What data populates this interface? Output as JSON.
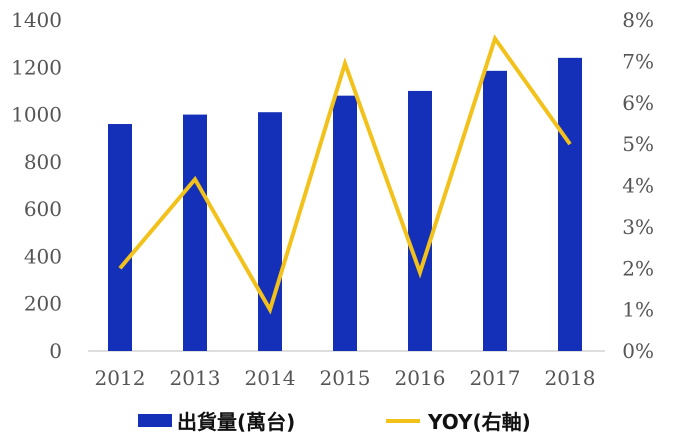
{
  "chart_data": {
    "type": "bar",
    "categories": [
      "2012",
      "2013",
      "2014",
      "2015",
      "2016",
      "2017",
      "2018"
    ],
    "series": [
      {
        "name": "出貨量(萬台)",
        "type": "bar",
        "axis": "left",
        "color": "#1530b8",
        "values": [
          960,
          1000,
          1010,
          1080,
          1100,
          1185,
          1240
        ]
      },
      {
        "name": "YOY(右軸)",
        "type": "line",
        "axis": "right",
        "color": "#f2c21b",
        "values": [
          2.0,
          4.15,
          1.0,
          6.95,
          1.9,
          7.55,
          5.0
        ]
      }
    ],
    "y_left": {
      "range": [
        0,
        1400
      ],
      "ticks": [
        "0",
        "200",
        "400",
        "600",
        "800",
        "1000",
        "1200",
        "1400"
      ]
    },
    "y_right": {
      "range": [
        0,
        8
      ],
      "ticks": [
        "0%",
        "1%",
        "2%",
        "3%",
        "4%",
        "5%",
        "6%",
        "7%",
        "8%"
      ]
    },
    "grid": false,
    "legend": "bottom"
  }
}
